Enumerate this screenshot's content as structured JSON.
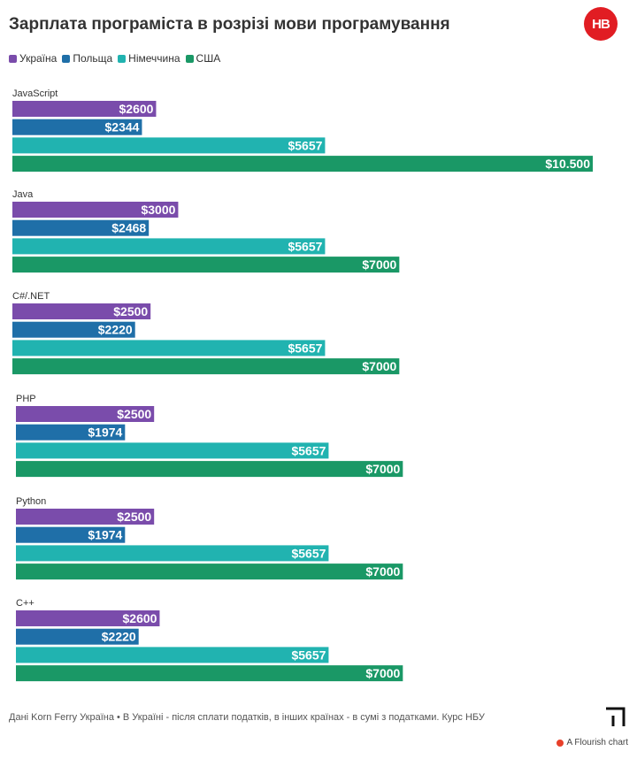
{
  "header": {
    "title": "Зарплата програміста в розрізі мови програмування",
    "logo": "НВ"
  },
  "footer": {
    "note": "Дані Korn Ferry Україна • В Україні - після сплати податків, в інших країнах - в сумі з податками. Курс НБУ",
    "credit": "A Flourish chart"
  },
  "chart_data": {
    "type": "bar",
    "orientation": "horizontal",
    "grouped": true,
    "legend_position": "top-left",
    "xlim": [
      0,
      10500
    ],
    "categories": [
      "JavaScript",
      "Java",
      "C#/.NET",
      "PHP",
      "Python",
      "C++"
    ],
    "series": [
      {
        "name": "Україна",
        "color": "#7a4cab",
        "values": [
          2600,
          3000,
          2500,
          2500,
          2500,
          2600
        ],
        "labels": [
          "$2600",
          "$3000",
          "$2500",
          "$2500",
          "$2500",
          "$2600"
        ]
      },
      {
        "name": "Польща",
        "color": "#1f6fa8",
        "values": [
          2344,
          2468,
          2220,
          1974,
          1974,
          2220
        ],
        "labels": [
          "$2344",
          "$2468",
          "$2220",
          "$1974",
          "$1974",
          "$2220"
        ]
      },
      {
        "name": "Німеччина",
        "color": "#21b3b0",
        "values": [
          5657,
          5657,
          5657,
          5657,
          5657,
          5657
        ],
        "labels": [
          "$5657",
          "$5657",
          "$5657",
          "$5657",
          "$5657",
          "$5657"
        ]
      },
      {
        "name": "США",
        "color": "#1a9866",
        "values": [
          10500,
          7000,
          7000,
          7000,
          7000,
          7000
        ],
        "labels": [
          "$10.500",
          "$7000",
          "$7000",
          "$7000",
          "$7000",
          "$7000"
        ]
      }
    ]
  }
}
